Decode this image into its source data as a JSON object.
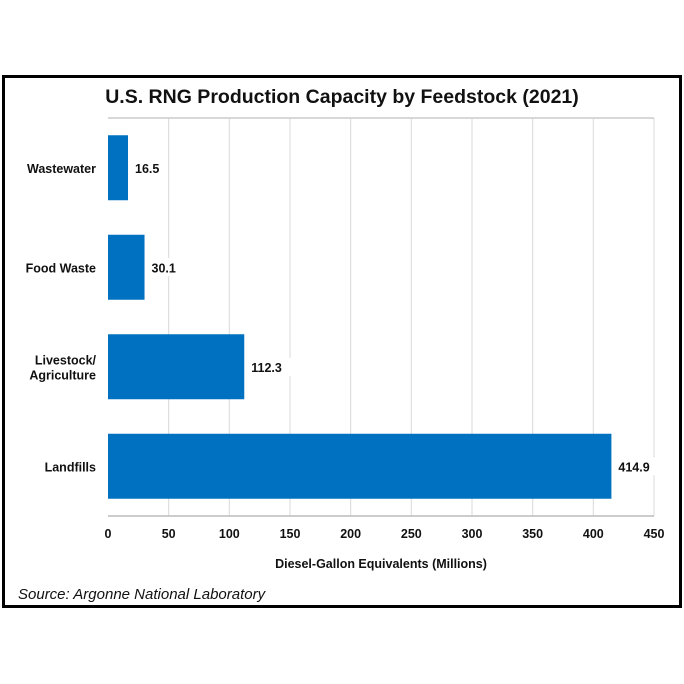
{
  "chart_data": {
    "type": "bar",
    "orientation": "horizontal",
    "title": "U.S. RNG Production Capacity by Feedstock (2021)",
    "xlabel": "Diesel-Gallon Equivalents (Millions)",
    "ylabel": "",
    "categories": [
      [
        "Wastewater"
      ],
      [
        "Food Waste"
      ],
      [
        "Livestock/",
        "Agriculture"
      ],
      [
        "Landfills"
      ]
    ],
    "values": [
      16.5,
      30.1,
      112.3,
      414.9
    ],
    "data_labels": [
      "16.5",
      "30.1",
      "112.3",
      "414.9"
    ],
    "xlim": [
      0,
      450
    ],
    "xticks": [
      0,
      50,
      100,
      150,
      200,
      250,
      300,
      350,
      400,
      450
    ],
    "grid": "vertical",
    "legend": "none",
    "bar_color": "#0070C0",
    "source": "Source:  Argonne National Laboratory"
  }
}
